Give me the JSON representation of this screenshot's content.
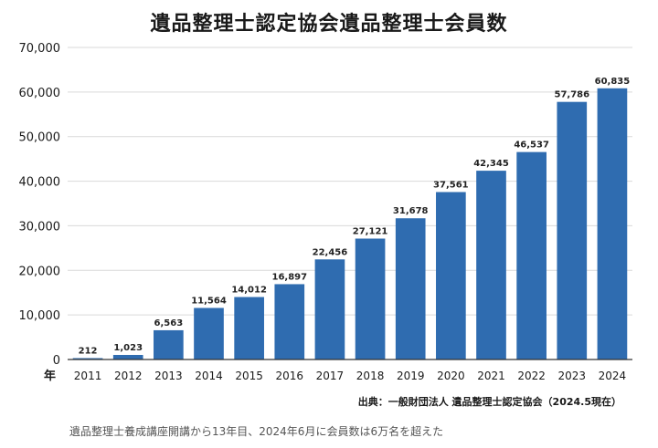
{
  "chart_data": {
    "type": "bar",
    "title": "遺品整理士認定協会遺品整理士会員数",
    "xlabel": "年",
    "ylabel": "",
    "ylim": [
      0,
      70000
    ],
    "yticks": [
      0,
      10000,
      20000,
      30000,
      40000,
      50000,
      60000,
      70000
    ],
    "ytick_labels": [
      "0",
      "10,000",
      "20,000",
      "30,000",
      "40,000",
      "50,000",
      "60,000",
      "70,000"
    ],
    "categories": [
      "2011",
      "2012",
      "2013",
      "2014",
      "2015",
      "2016",
      "2017",
      "2018",
      "2019",
      "2020",
      "2021",
      "2022",
      "2023",
      "2024"
    ],
    "values": [
      212,
      1023,
      6563,
      11564,
      14012,
      16897,
      22456,
      27121,
      31678,
      37561,
      42345,
      46537,
      57786,
      60835
    ],
    "data_labels": [
      "212",
      "1,023",
      "6,563",
      "11,564",
      "14,012",
      "16,897",
      "22,456",
      "27,121",
      "31,678",
      "37,561",
      "42,345",
      "46,537",
      "57,786",
      "60,835"
    ],
    "grid": true,
    "bar_color": "#2f6cb0"
  },
  "source": "出典：一般財団法人 遺品整理士認定協会（2024.5現在）",
  "caption": "遺品整理士養成講座開講から13年目、2024年6月に会員数は6万名を超えた"
}
